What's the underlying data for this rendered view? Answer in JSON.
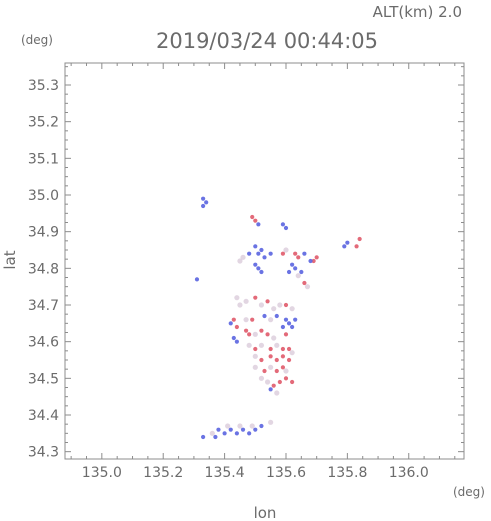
{
  "header": {
    "altitude_label": "ALT(km)  2.0",
    "timestamp": "2019/03/24  00:44:05"
  },
  "chart_data": {
    "type": "scatter",
    "title": "",
    "xlabel": "lon",
    "ylabel": "lat",
    "x_unit": "(deg)",
    "y_unit": "(deg)",
    "xlim": [
      134.88,
      136.18
    ],
    "ylim": [
      34.28,
      35.36
    ],
    "x_ticks": [
      135.0,
      135.2,
      135.4,
      135.6,
      135.8,
      136.0
    ],
    "x_tick_labels": [
      "135.0",
      "135.2",
      "135.4",
      "135.6",
      "135.8",
      "136.0"
    ],
    "y_ticks": [
      34.3,
      34.4,
      34.5,
      34.6,
      34.7,
      34.8,
      34.9,
      35.0,
      35.1,
      35.2,
      35.3
    ],
    "y_tick_labels": [
      "34.3",
      "34.4",
      "34.5",
      "34.6",
      "34.7",
      "34.8",
      "34.9",
      "35.0",
      "35.1",
      "35.2",
      "35.3"
    ],
    "grid": false,
    "colors": {
      "positive": "#e05a6a",
      "negative": "#5a64e0",
      "neutral": "#d8c8d8",
      "axis": "#8c8c8c"
    },
    "points": [
      [
        135.33,
        34.99,
        "n"
      ],
      [
        135.34,
        34.98,
        "n"
      ],
      [
        135.33,
        34.97,
        "n"
      ],
      [
        135.5,
        34.93,
        "p"
      ],
      [
        135.51,
        34.92,
        "n"
      ],
      [
        135.49,
        34.94,
        "p"
      ],
      [
        135.6,
        34.91,
        "n"
      ],
      [
        135.59,
        34.92,
        "n"
      ],
      [
        135.84,
        34.88,
        "p"
      ],
      [
        135.83,
        34.86,
        "p"
      ],
      [
        135.8,
        34.87,
        "n"
      ],
      [
        135.79,
        34.86,
        "n"
      ],
      [
        135.5,
        34.86,
        "n"
      ],
      [
        135.52,
        34.85,
        "n"
      ],
      [
        135.51,
        34.84,
        "n"
      ],
      [
        135.48,
        34.84,
        "n"
      ],
      [
        135.53,
        34.83,
        "n"
      ],
      [
        135.55,
        34.84,
        "n"
      ],
      [
        135.5,
        34.81,
        "n"
      ],
      [
        135.51,
        34.8,
        "n"
      ],
      [
        135.52,
        34.79,
        "n"
      ],
      [
        135.46,
        34.83,
        "x"
      ],
      [
        135.45,
        34.82,
        "x"
      ],
      [
        135.63,
        34.84,
        "p"
      ],
      [
        135.64,
        34.83,
        "p"
      ],
      [
        135.66,
        34.84,
        "n"
      ],
      [
        135.69,
        34.82,
        "p"
      ],
      [
        135.7,
        34.83,
        "p"
      ],
      [
        135.68,
        34.82,
        "n"
      ],
      [
        135.6,
        34.85,
        "x"
      ],
      [
        135.59,
        34.84,
        "p"
      ],
      [
        135.62,
        34.81,
        "n"
      ],
      [
        135.63,
        34.8,
        "n"
      ],
      [
        135.65,
        34.79,
        "n"
      ],
      [
        135.61,
        34.79,
        "n"
      ],
      [
        135.64,
        34.78,
        "x"
      ],
      [
        135.66,
        34.76,
        "p"
      ],
      [
        135.67,
        34.75,
        "x"
      ],
      [
        135.31,
        34.77,
        "n"
      ],
      [
        135.44,
        34.72,
        "x"
      ],
      [
        135.45,
        34.7,
        "x"
      ],
      [
        135.47,
        34.71,
        "x"
      ],
      [
        135.5,
        34.72,
        "p"
      ],
      [
        135.52,
        34.7,
        "x"
      ],
      [
        135.54,
        34.71,
        "p"
      ],
      [
        135.56,
        34.69,
        "x"
      ],
      [
        135.58,
        34.7,
        "x"
      ],
      [
        135.6,
        34.7,
        "p"
      ],
      [
        135.62,
        34.69,
        "x"
      ],
      [
        135.43,
        34.66,
        "p"
      ],
      [
        135.42,
        34.65,
        "n"
      ],
      [
        135.44,
        34.64,
        "p"
      ],
      [
        135.47,
        34.66,
        "x"
      ],
      [
        135.49,
        34.66,
        "p"
      ],
      [
        135.53,
        34.67,
        "n"
      ],
      [
        135.55,
        34.66,
        "x"
      ],
      [
        135.57,
        34.67,
        "n"
      ],
      [
        135.6,
        34.66,
        "n"
      ],
      [
        135.61,
        34.65,
        "n"
      ],
      [
        135.63,
        34.66,
        "n"
      ],
      [
        135.62,
        34.64,
        "n"
      ],
      [
        135.59,
        34.64,
        "n"
      ],
      [
        135.6,
        34.62,
        "p"
      ],
      [
        135.47,
        34.63,
        "p"
      ],
      [
        135.48,
        34.62,
        "p"
      ],
      [
        135.5,
        34.62,
        "x"
      ],
      [
        135.52,
        34.63,
        "p"
      ],
      [
        135.54,
        34.62,
        "p"
      ],
      [
        135.56,
        34.61,
        "x"
      ],
      [
        135.43,
        34.61,
        "n"
      ],
      [
        135.44,
        34.6,
        "n"
      ],
      [
        135.48,
        34.59,
        "x"
      ],
      [
        135.5,
        34.58,
        "p"
      ],
      [
        135.52,
        34.59,
        "x"
      ],
      [
        135.55,
        34.58,
        "p"
      ],
      [
        135.57,
        34.59,
        "x"
      ],
      [
        135.59,
        34.58,
        "p"
      ],
      [
        135.61,
        34.58,
        "p"
      ],
      [
        135.62,
        34.57,
        "x"
      ],
      [
        135.5,
        34.56,
        "x"
      ],
      [
        135.52,
        34.55,
        "p"
      ],
      [
        135.55,
        34.56,
        "p"
      ],
      [
        135.57,
        34.55,
        "p"
      ],
      [
        135.59,
        34.56,
        "p"
      ],
      [
        135.61,
        34.55,
        "p"
      ],
      [
        135.5,
        34.53,
        "x"
      ],
      [
        135.53,
        34.52,
        "p"
      ],
      [
        135.55,
        34.53,
        "x"
      ],
      [
        135.57,
        34.52,
        "p"
      ],
      [
        135.59,
        34.53,
        "p"
      ],
      [
        135.6,
        34.52,
        "x"
      ],
      [
        135.52,
        34.5,
        "x"
      ],
      [
        135.54,
        34.49,
        "x"
      ],
      [
        135.56,
        34.48,
        "p"
      ],
      [
        135.58,
        34.49,
        "p"
      ],
      [
        135.6,
        34.5,
        "p"
      ],
      [
        135.62,
        34.49,
        "p"
      ],
      [
        135.55,
        34.47,
        "n"
      ],
      [
        135.57,
        34.46,
        "x"
      ],
      [
        135.38,
        34.36,
        "n"
      ],
      [
        135.4,
        34.35,
        "n"
      ],
      [
        135.42,
        34.36,
        "n"
      ],
      [
        135.44,
        34.35,
        "n"
      ],
      [
        135.46,
        34.36,
        "n"
      ],
      [
        135.48,
        34.35,
        "n"
      ],
      [
        135.5,
        34.36,
        "n"
      ],
      [
        135.52,
        34.37,
        "n"
      ],
      [
        135.37,
        34.34,
        "n"
      ],
      [
        135.33,
        34.34,
        "n"
      ],
      [
        135.36,
        34.35,
        "x"
      ],
      [
        135.41,
        34.37,
        "x"
      ],
      [
        135.45,
        34.37,
        "x"
      ],
      [
        135.49,
        34.37,
        "x"
      ],
      [
        135.55,
        34.38,
        "x"
      ]
    ]
  }
}
